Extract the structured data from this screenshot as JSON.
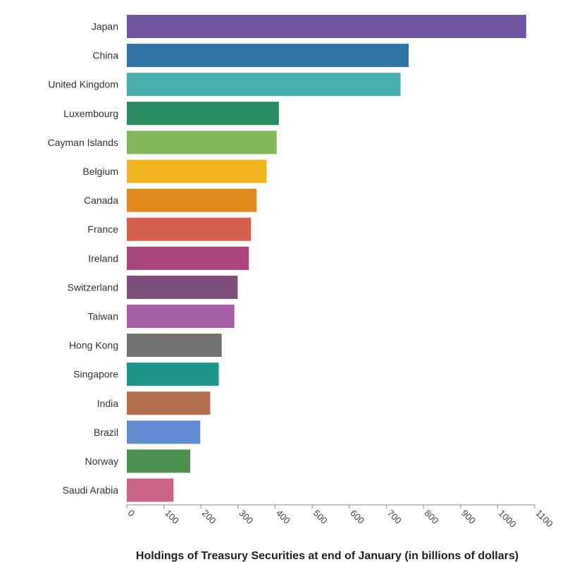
{
  "chart_data": {
    "type": "bar",
    "orientation": "horizontal",
    "title": "",
    "xlabel": "Holdings of Treasury Securities at end of January (in billions of dollars)",
    "ylabel": "",
    "xlim": [
      0,
      1100
    ],
    "xticks": [
      0,
      100,
      200,
      300,
      400,
      500,
      600,
      700,
      800,
      900,
      1000,
      1100
    ],
    "grid": false,
    "categories": [
      "Japan",
      "China",
      "United Kingdom",
      "Luxembourg",
      "Cayman Islands",
      "Belgium",
      "Canada",
      "France",
      "Ireland",
      "Switzerland",
      "Taiwan",
      "Hong Kong",
      "Singapore",
      "India",
      "Brazil",
      "Norway",
      "Saudi Arabia"
    ],
    "values": [
      1077,
      760,
      738,
      410,
      404,
      377,
      350,
      335,
      329,
      299,
      290,
      256,
      248,
      225,
      198,
      171,
      126
    ],
    "colors": [
      "#6f56a0",
      "#2f74a5",
      "#4aaeae",
      "#2a8a61",
      "#82b85a",
      "#f0b321",
      "#e2891e",
      "#d5604f",
      "#a84679",
      "#7e4e7b",
      "#a45ea3",
      "#737373",
      "#1d968b",
      "#b2704c",
      "#628bd1",
      "#4e904e",
      "#c96387"
    ]
  }
}
